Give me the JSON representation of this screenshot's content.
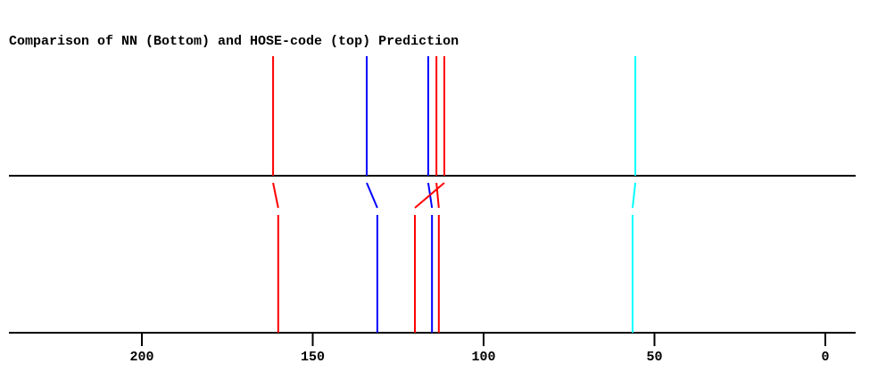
{
  "chart_data": {
    "type": "line",
    "title": "Comparison of NN (Bottom) and HOSE-code (top) Prediction",
    "xlabel": "",
    "ylabel": "",
    "xlim": [
      240,
      -8
    ],
    "x_reversed": true,
    "x_ticks": [
      200,
      150,
      100,
      50,
      0
    ],
    "x_tick_labels": [
      "200",
      "150",
      "100",
      "50",
      "0"
    ],
    "grid": false,
    "peaks": [
      {
        "top": 161.6,
        "bottom": 160.1,
        "color": "#ff0000"
      },
      {
        "top": 134.2,
        "bottom": 131.1,
        "color": "#0000ff"
      },
      {
        "top": 116.2,
        "bottom": 115.1,
        "color": "#0000ff"
      },
      {
        "top": 113.8,
        "bottom": 113.1,
        "color": "#ff0000"
      },
      {
        "top": 111.5,
        "bottom": 120.1,
        "color": "#ff0000"
      },
      {
        "top": 55.6,
        "bottom": 56.4,
        "color": "#00ffff"
      }
    ]
  }
}
